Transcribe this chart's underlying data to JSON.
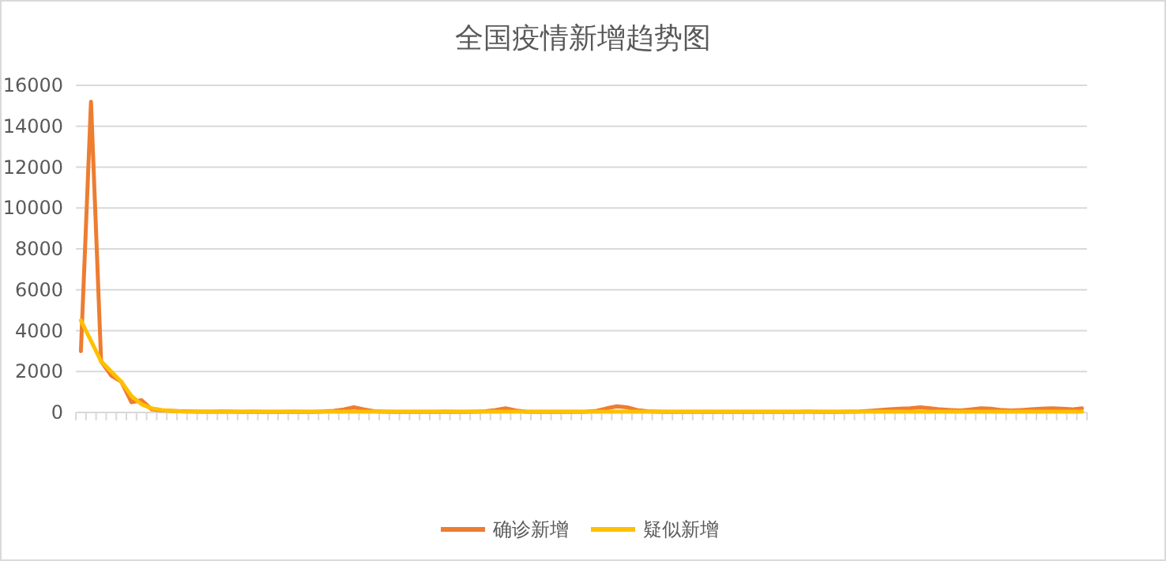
{
  "chart_data": {
    "type": "line",
    "title": "全国疫情新增趋势图",
    "categories": [
      null,
      null,
      null,
      null,
      null,
      null,
      null,
      null,
      null,
      null,
      null,
      null,
      null,
      null,
      null,
      null,
      null,
      null,
      null,
      null,
      null,
      null,
      null,
      null,
      null,
      null,
      null,
      null,
      null,
      null,
      null,
      null,
      null,
      null,
      null,
      null,
      null,
      null,
      null,
      null,
      null,
      null,
      null,
      null,
      null,
      null,
      null,
      null,
      null,
      null,
      null,
      null,
      null,
      null,
      null,
      null,
      null,
      null,
      null,
      null,
      null,
      null,
      null,
      null,
      null,
      null,
      null,
      null,
      null,
      null,
      null,
      null,
      null,
      null,
      null,
      null,
      null,
      null,
      null,
      null,
      null,
      null,
      null,
      null,
      null,
      null,
      null,
      null,
      null,
      null,
      null,
      null,
      null,
      null,
      null,
      null,
      null,
      null,
      null,
      null
    ],
    "series": [
      {
        "name": "确诊新增",
        "color": "#ed7d31",
        "values": [
          3000,
          15200,
          2500,
          1800,
          1500,
          500,
          600,
          150,
          100,
          80,
          60,
          50,
          40,
          40,
          50,
          40,
          30,
          40,
          30,
          30,
          30,
          40,
          30,
          30,
          50,
          80,
          150,
          250,
          150,
          60,
          40,
          30,
          30,
          30,
          30,
          30,
          40,
          30,
          30,
          40,
          60,
          120,
          200,
          100,
          40,
          30,
          30,
          30,
          30,
          30,
          40,
          80,
          200,
          300,
          250,
          120,
          60,
          40,
          30,
          30,
          30,
          30,
          30,
          30,
          30,
          30,
          30,
          30,
          30,
          30,
          30,
          30,
          40,
          30,
          30,
          30,
          40,
          50,
          80,
          120,
          150,
          180,
          200,
          250,
          200,
          150,
          120,
          100,
          150,
          200,
          180,
          120,
          100,
          120,
          150,
          180,
          200,
          180,
          150,
          200
        ]
      },
      {
        "name": "疑似新增",
        "color": "#ffc000",
        "values": [
          4500,
          3500,
          2500,
          2000,
          1500,
          800,
          400,
          200,
          120,
          80,
          50,
          40,
          40,
          40,
          40,
          40,
          40,
          40,
          40,
          40,
          40,
          40,
          40,
          40,
          40,
          40,
          40,
          40,
          40,
          40,
          40,
          40,
          40,
          40,
          40,
          40,
          40,
          40,
          40,
          40,
          40,
          40,
          40,
          40,
          40,
          40,
          40,
          40,
          40,
          40,
          40,
          40,
          40,
          40,
          40,
          40,
          40,
          40,
          40,
          40,
          40,
          40,
          40,
          40,
          40,
          40,
          40,
          40,
          40,
          40,
          40,
          40,
          40,
          40,
          40,
          40,
          40,
          40,
          40,
          40,
          40,
          40,
          40,
          40,
          40,
          40,
          40,
          40,
          40,
          40,
          40,
          40,
          40,
          40,
          40,
          40,
          40,
          40,
          40,
          40
        ]
      }
    ],
    "ylim": [
      0,
      16000
    ],
    "yticks": [
      0,
      2000,
      4000,
      6000,
      8000,
      10000,
      12000,
      14000,
      16000
    ],
    "grid": "y",
    "legend": "bottom",
    "marker": "none",
    "line_style": "solid"
  }
}
